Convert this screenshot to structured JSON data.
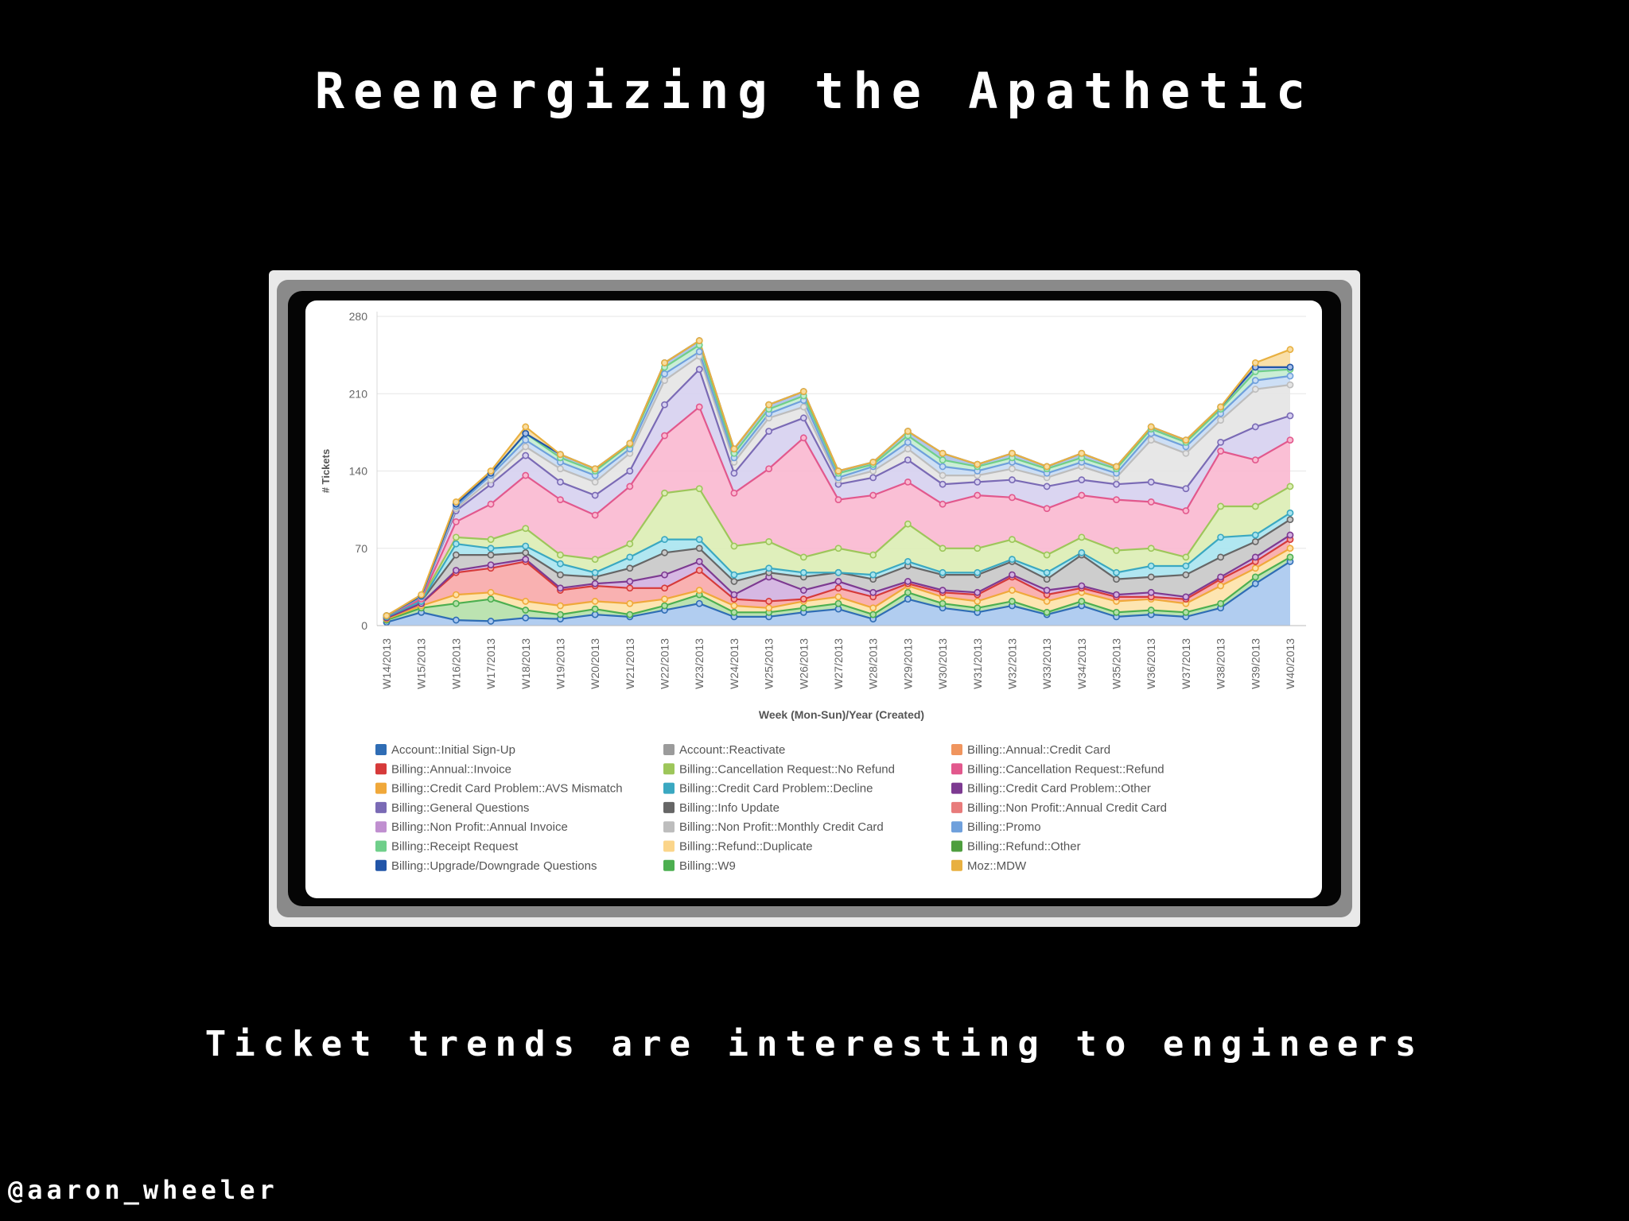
{
  "slide": {
    "title": "Reenergizing the Apathetic",
    "subtitle": "Ticket trends are interesting to engineers",
    "handle": "@aaron_wheeler"
  },
  "chart_data": {
    "type": "area",
    "stacked": true,
    "xlabel": "Week (Mon-Sun)/Year (Created)",
    "ylabel": "# Tickets",
    "ylim": [
      0,
      280
    ],
    "yticks": [
      0,
      70,
      140,
      210,
      280
    ],
    "grid": true,
    "legend_position": "bottom",
    "categories": [
      "W14/2013",
      "W15/2013",
      "W16/2013",
      "W17/2013",
      "W18/2013",
      "W19/2013",
      "W20/2013",
      "W21/2013",
      "W22/2013",
      "W23/2013",
      "W24/2013",
      "W25/2013",
      "W26/2013",
      "W27/2013",
      "W28/2013",
      "W29/2013",
      "W30/2013",
      "W31/2013",
      "W32/2013",
      "W33/2013",
      "W34/2013",
      "W35/2013",
      "W36/2013",
      "W37/2013",
      "W38/2013",
      "W39/2013",
      "W40/2013"
    ],
    "series": [
      {
        "name": "Account::Initial Sign-Up",
        "color": "#2f6db5",
        "values": [
          3,
          12,
          5,
          4,
          7,
          6,
          10,
          8,
          14,
          20,
          8,
          8,
          12,
          15,
          6,
          24,
          16,
          12,
          18,
          10,
          18,
          8,
          10,
          8,
          16,
          38,
          58
        ]
      },
      {
        "name": "Account::Reactivate",
        "color": "#9b9b9b",
        "values": [
          0,
          0,
          0,
          0,
          0,
          0,
          0,
          0,
          0,
          0,
          0,
          0,
          0,
          0,
          0,
          0,
          0,
          0,
          0,
          0,
          0,
          0,
          0,
          0,
          0,
          0,
          0
        ]
      },
      {
        "name": "Billing::Annual::Credit Card",
        "color": "#f0955e",
        "values": [
          0,
          0,
          0,
          0,
          0,
          0,
          0,
          0,
          0,
          0,
          0,
          0,
          0,
          0,
          0,
          0,
          0,
          0,
          0,
          0,
          0,
          0,
          0,
          0,
          0,
          0,
          0
        ]
      },
      {
        "name": "Billing::Annual::Invoice",
        "color": "#d63a3a",
        "values": [
          0,
          0,
          0,
          0,
          0,
          0,
          0,
          0,
          0,
          0,
          0,
          0,
          0,
          0,
          0,
          0,
          0,
          0,
          0,
          0,
          0,
          0,
          0,
          0,
          0,
          0,
          0
        ]
      },
      {
        "name": "Billing::Cancellation Request::No Refund",
        "color": "#9dc65a",
        "values": [
          0,
          0,
          0,
          0,
          0,
          0,
          0,
          0,
          0,
          0,
          0,
          0,
          0,
          0,
          0,
          0,
          0,
          0,
          0,
          0,
          0,
          0,
          0,
          0,
          0,
          0,
          0
        ]
      },
      {
        "name": "Billing::Cancellation Request::Refund",
        "color": "#e2588d",
        "values": [
          0,
          0,
          0,
          0,
          0,
          0,
          0,
          0,
          0,
          0,
          0,
          0,
          0,
          0,
          0,
          0,
          0,
          0,
          0,
          0,
          0,
          0,
          0,
          0,
          0,
          0,
          0
        ]
      },
      {
        "name": "Billing::Credit Card Problem::AVS Mismatch",
        "color": "#f0a83a",
        "values": [
          0,
          0,
          0,
          0,
          0,
          0,
          0,
          0,
          0,
          0,
          0,
          0,
          0,
          0,
          0,
          0,
          0,
          0,
          0,
          0,
          0,
          0,
          0,
          0,
          0,
          0,
          0
        ]
      },
      {
        "name": "Billing::Credit Card Problem::Decline",
        "color": "#3aa8c1",
        "values": [
          0,
          0,
          0,
          0,
          0,
          0,
          0,
          0,
          0,
          0,
          0,
          0,
          0,
          0,
          0,
          0,
          0,
          0,
          0,
          0,
          0,
          0,
          0,
          0,
          0,
          0,
          0
        ]
      },
      {
        "name": "Billing::Credit Card Problem::Other",
        "color": "#7d3a91",
        "values": [
          0,
          0,
          0,
          0,
          0,
          0,
          0,
          0,
          0,
          0,
          0,
          0,
          0,
          0,
          0,
          0,
          0,
          0,
          0,
          0,
          0,
          0,
          0,
          0,
          0,
          0,
          0
        ]
      },
      {
        "name": "Billing::General Questions",
        "color": "#7a6ab5",
        "values": [
          0,
          0,
          0,
          0,
          0,
          0,
          0,
          0,
          0,
          0,
          0,
          0,
          0,
          0,
          0,
          0,
          0,
          0,
          0,
          0,
          0,
          0,
          0,
          0,
          0,
          0,
          0
        ]
      },
      {
        "name": "Billing::Info Update",
        "color": "#666666",
        "values": [
          0,
          0,
          0,
          0,
          0,
          0,
          0,
          0,
          0,
          0,
          0,
          0,
          0,
          0,
          0,
          0,
          0,
          0,
          0,
          0,
          0,
          0,
          0,
          0,
          0,
          0,
          0
        ]
      },
      {
        "name": "Billing::Non Profit::Annual Credit Card",
        "color": "#e87b7b",
        "values": [
          0,
          0,
          0,
          0,
          0,
          0,
          0,
          0,
          0,
          0,
          0,
          0,
          0,
          0,
          0,
          0,
          0,
          0,
          0,
          0,
          0,
          0,
          0,
          0,
          0,
          0,
          0
        ]
      },
      {
        "name": "Billing::Non Profit::Annual Invoice",
        "color": "#c08fd0",
        "values": [
          0,
          0,
          0,
          0,
          0,
          0,
          0,
          0,
          0,
          0,
          0,
          0,
          0,
          0,
          0,
          0,
          0,
          0,
          0,
          0,
          0,
          0,
          0,
          0,
          0,
          0,
          0
        ]
      },
      {
        "name": "Billing::Non Profit::Monthly Credit Card",
        "color": "#bdbdbd",
        "values": [
          0,
          0,
          0,
          0,
          0,
          0,
          0,
          0,
          0,
          0,
          0,
          0,
          0,
          0,
          0,
          0,
          0,
          0,
          0,
          0,
          0,
          0,
          0,
          0,
          0,
          0,
          0
        ]
      },
      {
        "name": "Billing::Promo",
        "color": "#6fa0dc",
        "values": [
          0,
          0,
          0,
          0,
          0,
          0,
          0,
          0,
          0,
          0,
          0,
          0,
          0,
          0,
          0,
          0,
          0,
          0,
          0,
          0,
          0,
          0,
          0,
          0,
          0,
          0,
          0
        ]
      },
      {
        "name": "Billing::Receipt Request",
        "color": "#6fcf8a",
        "values": [
          0,
          0,
          0,
          0,
          0,
          0,
          0,
          0,
          0,
          0,
          0,
          0,
          0,
          0,
          0,
          0,
          0,
          0,
          0,
          0,
          0,
          0,
          0,
          0,
          0,
          0,
          0
        ]
      },
      {
        "name": "Billing::Refund::Duplicate",
        "color": "#fbd58a",
        "values": [
          0,
          0,
          0,
          0,
          0,
          0,
          0,
          0,
          0,
          0,
          0,
          0,
          0,
          0,
          0,
          0,
          0,
          0,
          0,
          0,
          0,
          0,
          0,
          0,
          0,
          0,
          0
        ]
      },
      {
        "name": "Billing::Refund::Other",
        "color": "#4e9e3e",
        "values": [
          0,
          0,
          0,
          0,
          0,
          0,
          0,
          0,
          0,
          0,
          0,
          0,
          0,
          0,
          0,
          0,
          0,
          0,
          0,
          0,
          0,
          0,
          0,
          0,
          0,
          0,
          0
        ]
      },
      {
        "name": "Billing::Upgrade/Downgrade Questions",
        "color": "#2255a8",
        "values": [
          0,
          0,
          0,
          0,
          0,
          0,
          0,
          0,
          0,
          0,
          0,
          0,
          0,
          0,
          0,
          0,
          0,
          0,
          0,
          0,
          0,
          0,
          0,
          0,
          0,
          0,
          0
        ]
      },
      {
        "name": "Billing::W9",
        "color": "#4caf50",
        "values": [
          0,
          0,
          0,
          0,
          0,
          0,
          0,
          0,
          0,
          0,
          0,
          0,
          0,
          0,
          0,
          0,
          0,
          0,
          0,
          0,
          0,
          0,
          0,
          0,
          0,
          0,
          0
        ]
      },
      {
        "name": "Moz::MDW",
        "color": "#e8b040",
        "values": [
          0,
          0,
          0,
          0,
          0,
          0,
          0,
          0,
          0,
          0,
          0,
          0,
          0,
          0,
          0,
          0,
          0,
          0,
          0,
          0,
          0,
          0,
          0,
          0,
          0,
          0,
          0
        ]
      }
    ],
    "bands": [
      {
        "color": "#2f6db5",
        "fill": "#a9c8ee",
        "cum": [
          3,
          12,
          5,
          4,
          7,
          6,
          10,
          8,
          14,
          20,
          8,
          8,
          12,
          15,
          6,
          24,
          16,
          12,
          18,
          10,
          18,
          8,
          10,
          8,
          16,
          38,
          58
        ]
      },
      {
        "color": "#4caf50",
        "fill": "#b5e0a8",
        "cum": [
          5,
          16,
          20,
          24,
          14,
          10,
          15,
          10,
          18,
          28,
          12,
          12,
          16,
          20,
          10,
          30,
          20,
          16,
          22,
          12,
          22,
          12,
          14,
          12,
          20,
          44,
          62
        ]
      },
      {
        "color": "#f0a83a",
        "fill": "#fde2a8",
        "cum": [
          6,
          18,
          28,
          30,
          22,
          18,
          22,
          20,
          24,
          32,
          18,
          16,
          22,
          26,
          16,
          36,
          26,
          22,
          32,
          22,
          30,
          22,
          24,
          20,
          36,
          52,
          70
        ]
      },
      {
        "color": "#d63a3a",
        "fill": "#f8a8a8",
        "cum": [
          7,
          20,
          48,
          52,
          58,
          32,
          36,
          34,
          34,
          50,
          24,
          22,
          24,
          34,
          26,
          38,
          30,
          28,
          44,
          28,
          34,
          26,
          26,
          24,
          42,
          58,
          78
        ]
      },
      {
        "color": "#7d3a91",
        "fill": "#d2b0e0",
        "cum": [
          7,
          20,
          50,
          55,
          60,
          34,
          38,
          40,
          46,
          58,
          28,
          44,
          32,
          40,
          30,
          40,
          32,
          30,
          46,
          32,
          36,
          28,
          30,
          26,
          44,
          62,
          82
        ]
      },
      {
        "color": "#666666",
        "fill": "#c8c8c8",
        "cum": [
          8,
          22,
          64,
          64,
          66,
          46,
          44,
          52,
          66,
          70,
          40,
          48,
          44,
          48,
          42,
          54,
          46,
          46,
          58,
          42,
          64,
          42,
          44,
          46,
          62,
          76,
          96
        ]
      },
      {
        "color": "#3aa8c1",
        "fill": "#a8e4ef",
        "cum": [
          8,
          22,
          74,
          70,
          72,
          56,
          48,
          62,
          78,
          78,
          46,
          52,
          48,
          48,
          46,
          58,
          48,
          48,
          60,
          48,
          66,
          48,
          54,
          54,
          80,
          82,
          102
        ]
      },
      {
        "color": "#9dc65a",
        "fill": "#dcedb4",
        "cum": [
          9,
          24,
          80,
          78,
          88,
          64,
          60,
          74,
          120,
          124,
          72,
          76,
          62,
          70,
          64,
          92,
          70,
          70,
          78,
          64,
          80,
          68,
          70,
          62,
          108,
          108,
          126
        ]
      },
      {
        "color": "#e2588d",
        "fill": "#fab8d0",
        "cum": [
          9,
          24,
          94,
          110,
          136,
          114,
          100,
          126,
          172,
          198,
          120,
          142,
          170,
          114,
          118,
          130,
          110,
          118,
          116,
          106,
          118,
          114,
          112,
          104,
          158,
          150,
          168
        ]
      },
      {
        "color": "#7a6ab5",
        "fill": "#d6d0f0",
        "cum": [
          9,
          26,
          104,
          128,
          154,
          130,
          118,
          140,
          200,
          232,
          138,
          176,
          188,
          128,
          134,
          150,
          128,
          130,
          132,
          126,
          132,
          128,
          130,
          124,
          166,
          180,
          190
        ]
      },
      {
        "color": "#bdbdbd",
        "fill": "#e4e4e4",
        "cum": [
          9,
          26,
          106,
          132,
          162,
          142,
          130,
          156,
          222,
          244,
          148,
          188,
          198,
          132,
          140,
          160,
          136,
          136,
          142,
          134,
          144,
          134,
          168,
          156,
          186,
          214,
          218
        ]
      },
      {
        "color": "#6fa0dc",
        "fill": "#c8dcf4",
        "cum": [
          9,
          26,
          108,
          136,
          168,
          148,
          136,
          160,
          228,
          248,
          152,
          192,
          204,
          134,
          144,
          166,
          144,
          140,
          148,
          138,
          148,
          138,
          174,
          162,
          192,
          222,
          226
        ]
      },
      {
        "color": "#6fcf8a",
        "fill": "#c4ecd0",
        "cum": [
          9,
          27,
          110,
          138,
          174,
          152,
          140,
          164,
          234,
          254,
          156,
          196,
          208,
          138,
          146,
          172,
          150,
          144,
          152,
          142,
          152,
          142,
          178,
          166,
          196,
          230,
          232
        ]
      },
      {
        "color": "#2255a8",
        "fill": "#a8c0e8",
        "cum": [
          9,
          27,
          110,
          138,
          174,
          155,
          142,
          165,
          238,
          258,
          160,
          200,
          212,
          140,
          148,
          176,
          156,
          146,
          156,
          144,
          156,
          144,
          180,
          168,
          198,
          234,
          234
        ]
      },
      {
        "color": "#e8b040",
        "fill": "#f8dca0",
        "cum": [
          9,
          28,
          112,
          140,
          180,
          155,
          142,
          165,
          238,
          258,
          160,
          200,
          212,
          140,
          148,
          176,
          156,
          146,
          156,
          144,
          156,
          144,
          180,
          168,
          198,
          238,
          250
        ]
      }
    ]
  }
}
